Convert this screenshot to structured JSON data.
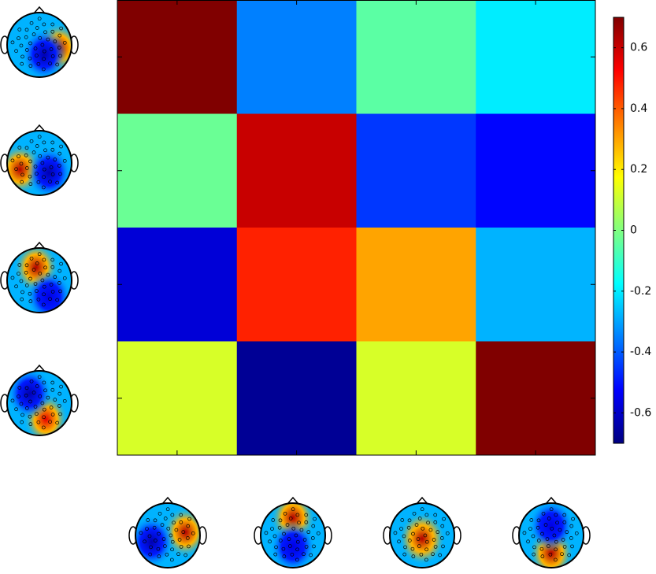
{
  "chart_data": {
    "type": "heatmap",
    "colormap": "jet",
    "x_categories": [
      null,
      null,
      null,
      null
    ],
    "y_categories": [
      null,
      null,
      null,
      null
    ],
    "values": [
      [
        0.7,
        -0.35,
        -0.05,
        -0.2
      ],
      [
        -0.03,
        0.6,
        -0.45,
        -0.52
      ],
      [
        -0.58,
        0.48,
        0.3,
        -0.28
      ],
      [
        0.12,
        -0.67,
        0.12,
        0.7
      ]
    ],
    "clim": [
      -0.7,
      0.7
    ],
    "cticks": [
      -0.6,
      -0.4,
      -0.2,
      0,
      0.2,
      0.4,
      0.6
    ]
  }
}
